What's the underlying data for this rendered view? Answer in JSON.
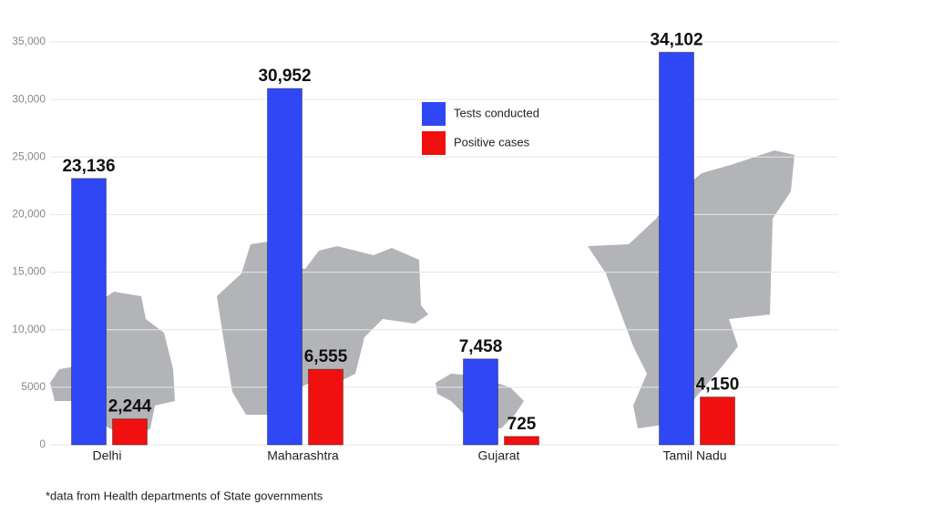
{
  "chart_data": {
    "type": "bar",
    "categories": [
      "Delhi",
      "Maharashtra",
      "Gujarat",
      "Tamil Nadu"
    ],
    "series": [
      {
        "name": "Tests conducted",
        "color": "#2f47f5",
        "values": [
          23136,
          30952,
          7458,
          34102
        ],
        "value_labels": [
          "23,136",
          "30,952",
          "7,458",
          "34,102"
        ]
      },
      {
        "name": "Positive cases",
        "color": "#f01010",
        "values": [
          2244,
          6555,
          725,
          4150
        ],
        "value_labels": [
          "2,244",
          "6,555",
          "725",
          "4,150"
        ]
      }
    ],
    "ylim": [
      0,
      35000
    ],
    "yticks": [
      0,
      5000,
      {
        "value": 10000,
        "label": "10,000"
      },
      {
        "value": 15000,
        "label": "15,000"
      },
      {
        "value": 20000,
        "label": "20,000"
      },
      {
        "value": 25000,
        "label": "25,000"
      },
      {
        "value": 30000,
        "label": "30,000"
      },
      {
        "value": 35000,
        "label": "35,000"
      }
    ],
    "grid": true,
    "footnote": "*data from Health departments of State governments"
  }
}
